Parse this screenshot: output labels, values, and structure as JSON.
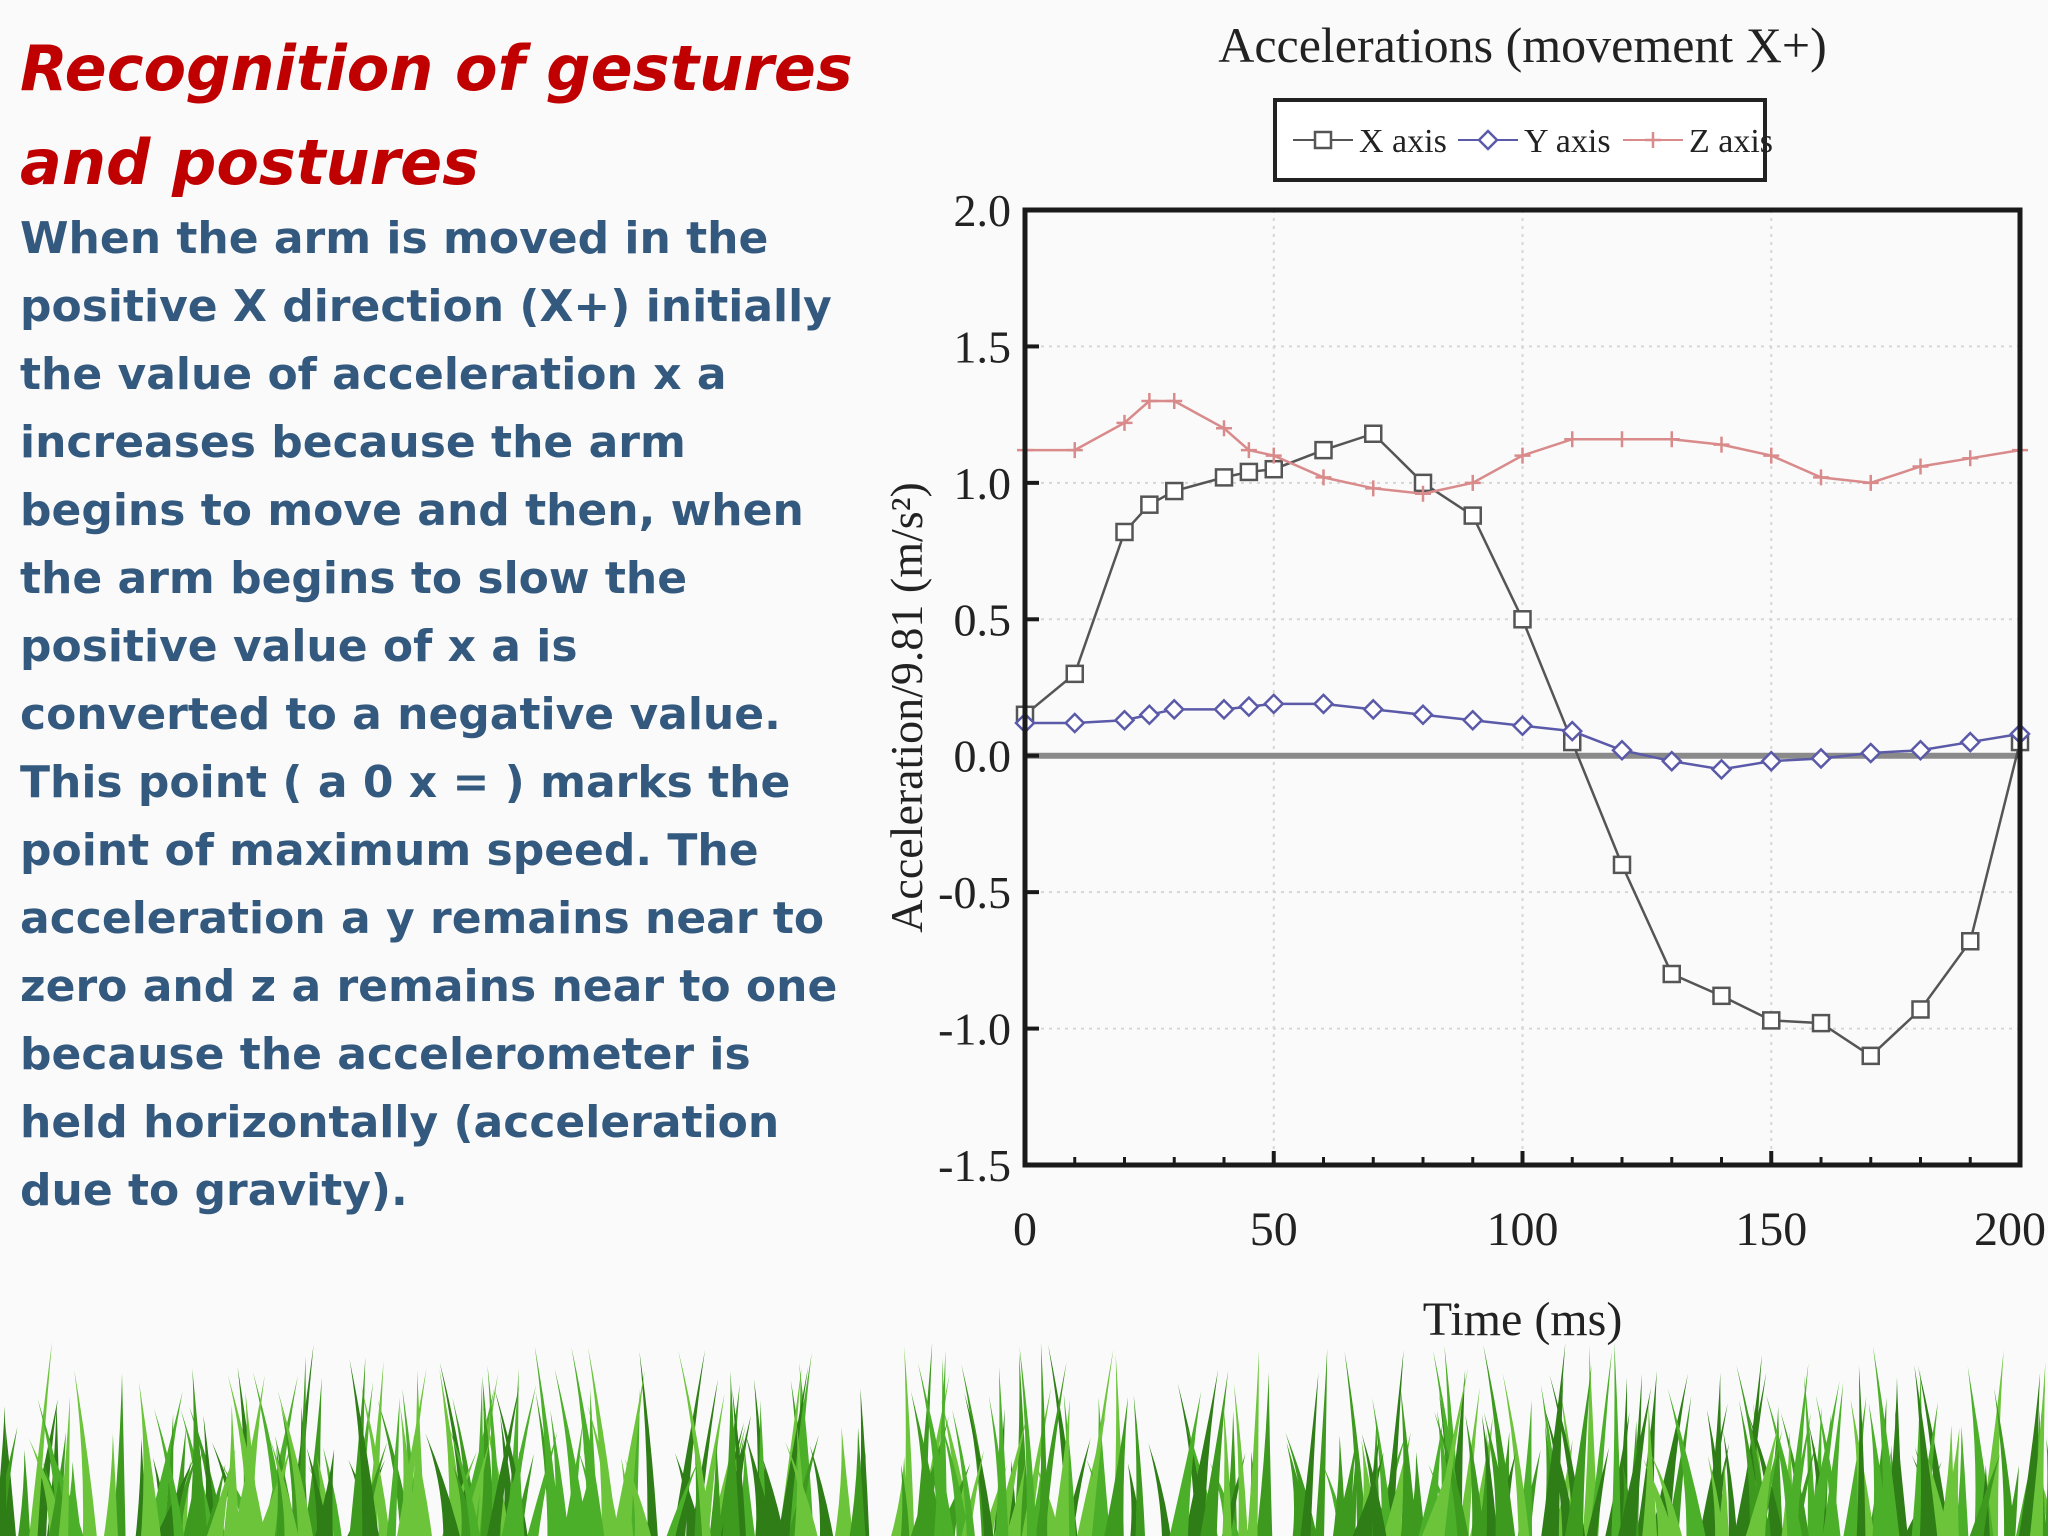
{
  "slide": {
    "title_line1": "Recognition of gestures",
    "title_line2": "and postures",
    "body": "When the arm is moved in the positive X direction (X+) initially the value of acceleration x a increases because the arm begins to move and then, when the arm begins to slow the positive value of x a is converted to a negative value. This point ( a 0 x = ) marks the point of maximum speed. The acceleration a y remains near to zero and z a remains near to one because the accelerometer is held horizontally (acceleration due to gravity)."
  },
  "chart_data": {
    "type": "line",
    "title": "Accelerations (movement X+)",
    "xlabel": "Time (ms)",
    "ylabel": "Acceleration/9.81 (m/s²)",
    "xlim": [
      0,
      200
    ],
    "ylim": [
      -1.5,
      2.0
    ],
    "xticks": [
      "0",
      "50",
      "100",
      "150",
      "200"
    ],
    "yticks": [
      "2.0",
      "1.5",
      "1.0",
      "0.5",
      "0.0",
      "-0.5",
      "-1.0",
      "-1.5"
    ],
    "grid": true,
    "legend_position": "top",
    "x": [
      0,
      10,
      20,
      25,
      30,
      40,
      45,
      50,
      60,
      70,
      80,
      90,
      100,
      110,
      120,
      130,
      140,
      150,
      160,
      170,
      180,
      190,
      200
    ],
    "series": [
      {
        "name": "X axis",
        "color": "#555555",
        "marker": "square",
        "values": [
          0.15,
          0.3,
          0.82,
          0.92,
          0.97,
          1.02,
          1.04,
          1.05,
          1.12,
          1.18,
          1.0,
          0.88,
          0.5,
          0.05,
          -0.4,
          -0.8,
          -0.88,
          -0.97,
          -0.98,
          -1.1,
          -0.93,
          -0.68,
          0.05
        ]
      },
      {
        "name": "Y axis",
        "color": "#5a5aa8",
        "marker": "diamond",
        "values": [
          0.12,
          0.12,
          0.13,
          0.15,
          0.17,
          0.17,
          0.18,
          0.19,
          0.19,
          0.17,
          0.15,
          0.13,
          0.11,
          0.09,
          0.02,
          -0.02,
          -0.05,
          -0.02,
          -0.01,
          0.01,
          0.02,
          0.05,
          0.08
        ]
      },
      {
        "name": "Z axis",
        "color": "#d98a8a",
        "marker": "plus",
        "values": [
          1.12,
          1.12,
          1.22,
          1.3,
          1.3,
          1.2,
          1.12,
          1.1,
          1.02,
          0.98,
          0.96,
          1.0,
          1.1,
          1.16,
          1.16,
          1.16,
          1.14,
          1.1,
          1.02,
          1.0,
          1.06,
          1.09,
          1.12
        ]
      }
    ]
  },
  "decor": {
    "grass_color": "#4caf2a",
    "grass_dark": "#2e7d16"
  }
}
